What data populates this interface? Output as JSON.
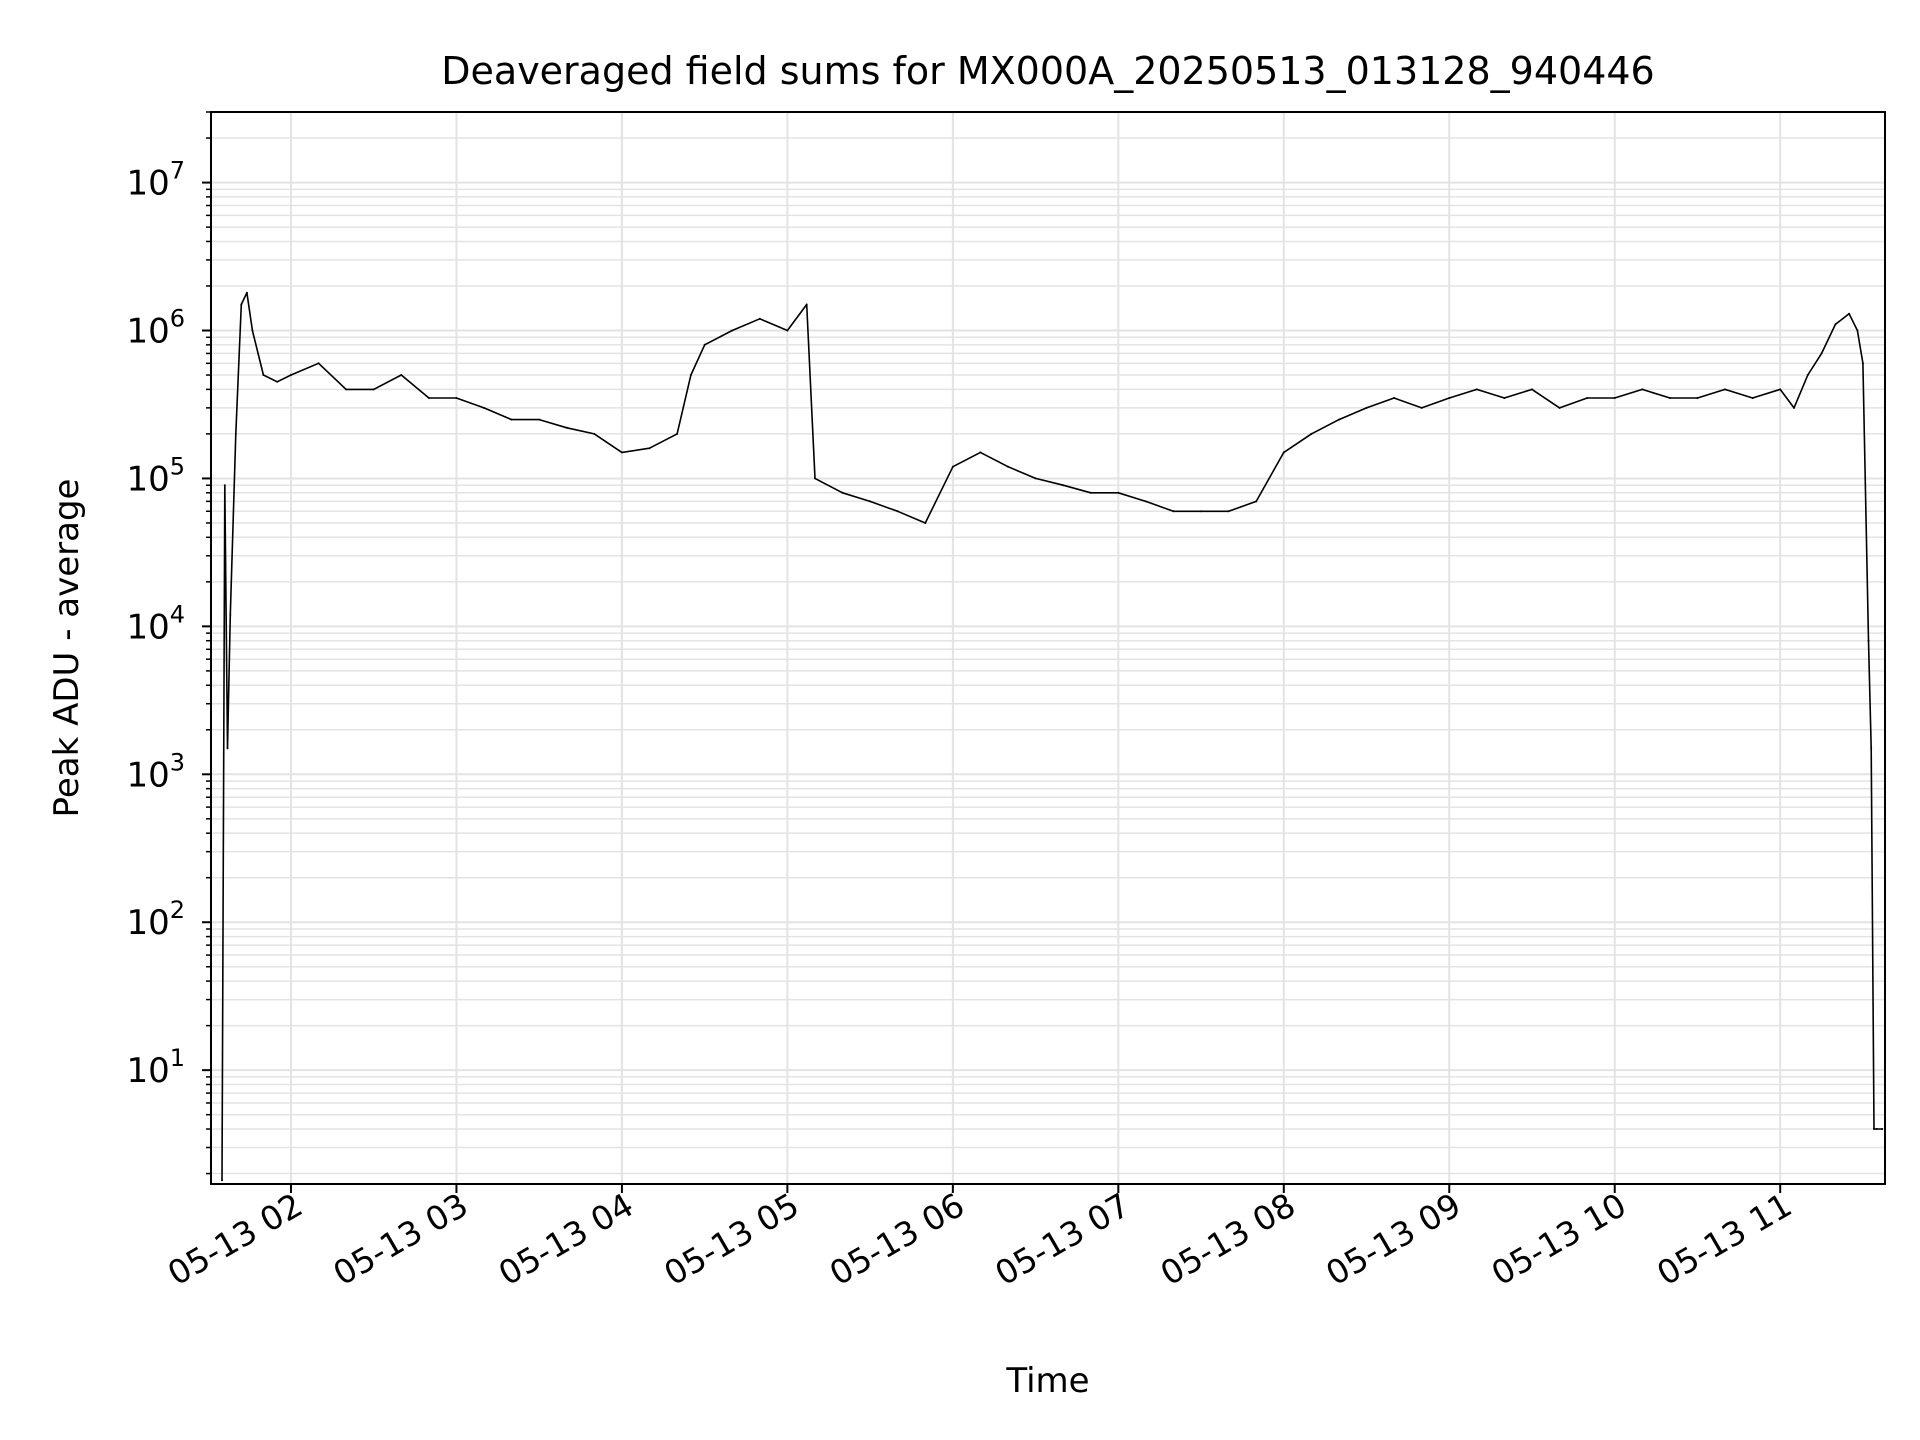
{
  "chart_data": {
    "type": "line",
    "title": "Deaveraged field sums for MX000A_20250513_013128_940446",
    "xlabel": "Time",
    "ylabel": "Peak ADU - average",
    "yscale": "log",
    "ylim": [
      1.7,
      30000000
    ],
    "xlim": [
      "2025-05-13 01:31:00",
      "2025-05-13 11:38:00"
    ],
    "x_ticks": [
      {
        "label": "05-13 02",
        "time": "2025-05-13 02:00"
      },
      {
        "label": "05-13 03",
        "time": "2025-05-13 03:00"
      },
      {
        "label": "05-13 04",
        "time": "2025-05-13 04:00"
      },
      {
        "label": "05-13 05",
        "time": "2025-05-13 05:00"
      },
      {
        "label": "05-13 06",
        "time": "2025-05-13 06:00"
      },
      {
        "label": "05-13 07",
        "time": "2025-05-13 07:00"
      },
      {
        "label": "05-13 08",
        "time": "2025-05-13 08:00"
      },
      {
        "label": "05-13 09",
        "time": "2025-05-13 09:00"
      },
      {
        "label": "05-13 10",
        "time": "2025-05-13 10:00"
      },
      {
        "label": "05-13 11",
        "time": "2025-05-13 11:00"
      }
    ],
    "y_ticks": [
      {
        "base": "10",
        "exp": "1",
        "value": 10
      },
      {
        "base": "10",
        "exp": "2",
        "value": 100
      },
      {
        "base": "10",
        "exp": "3",
        "value": 1000
      },
      {
        "base": "10",
        "exp": "4",
        "value": 10000
      },
      {
        "base": "10",
        "exp": "5",
        "value": 100000
      },
      {
        "base": "10",
        "exp": "6",
        "value": 1000000
      },
      {
        "base": "10",
        "exp": "7",
        "value": 10000000
      }
    ],
    "grid": true,
    "minor_grid": true,
    "line_color": "#000000",
    "grid_color": "#e3e3e3",
    "series": [
      {
        "x": [
          "2025-05-13 01:35",
          "2025-05-13 01:36",
          "2025-05-13 01:37",
          "2025-05-13 01:38",
          "2025-05-13 01:40",
          "2025-05-13 01:42",
          "2025-05-13 01:44",
          "2025-05-13 01:46",
          "2025-05-13 01:50",
          "2025-05-13 01:55",
          "2025-05-13 02:00",
          "2025-05-13 02:10",
          "2025-05-13 02:20",
          "2025-05-13 02:30",
          "2025-05-13 02:40",
          "2025-05-13 02:50",
          "2025-05-13 03:00",
          "2025-05-13 03:10",
          "2025-05-13 03:20",
          "2025-05-13 03:30",
          "2025-05-13 03:40",
          "2025-05-13 03:50",
          "2025-05-13 04:00",
          "2025-05-13 04:10",
          "2025-05-13 04:20",
          "2025-05-13 04:25",
          "2025-05-13 04:30",
          "2025-05-13 04:40",
          "2025-05-13 04:50",
          "2025-05-13 05:00",
          "2025-05-13 05:07",
          "2025-05-13 05:10",
          "2025-05-13 05:20",
          "2025-05-13 05:30",
          "2025-05-13 05:40",
          "2025-05-13 05:50",
          "2025-05-13 06:00",
          "2025-05-13 06:10",
          "2025-05-13 06:20",
          "2025-05-13 06:30",
          "2025-05-13 06:40",
          "2025-05-13 06:50",
          "2025-05-13 07:00",
          "2025-05-13 07:10",
          "2025-05-13 07:20",
          "2025-05-13 07:30",
          "2025-05-13 07:40",
          "2025-05-13 07:50",
          "2025-05-13 08:00",
          "2025-05-13 08:10",
          "2025-05-13 08:20",
          "2025-05-13 08:30",
          "2025-05-13 08:40",
          "2025-05-13 08:50",
          "2025-05-13 09:00",
          "2025-05-13 09:10",
          "2025-05-13 09:20",
          "2025-05-13 09:30",
          "2025-05-13 09:40",
          "2025-05-13 09:50",
          "2025-05-13 10:00",
          "2025-05-13 10:10",
          "2025-05-13 10:20",
          "2025-05-13 10:30",
          "2025-05-13 10:40",
          "2025-05-13 10:50",
          "2025-05-13 11:00",
          "2025-05-13 11:05",
          "2025-05-13 11:10",
          "2025-05-13 11:15",
          "2025-05-13 11:20",
          "2025-05-13 11:25",
          "2025-05-13 11:28",
          "2025-05-13 11:30",
          "2025-05-13 11:32",
          "2025-05-13 11:33",
          "2025-05-13 11:34",
          "2025-05-13 11:35",
          "2025-05-13 11:37"
        ],
        "y": [
          1.8,
          90000,
          1500,
          12000,
          200000,
          1500000,
          1800000,
          1000000,
          500000,
          450000,
          500000,
          600000,
          400000,
          400000,
          500000,
          350000,
          350000,
          300000,
          250000,
          250000,
          220000,
          200000,
          150000,
          160000,
          200000,
          500000,
          800000,
          1000000,
          1200000,
          1000000,
          1500000,
          100000,
          80000,
          70000,
          60000,
          50000,
          120000,
          150000,
          120000,
          100000,
          90000,
          80000,
          80000,
          70000,
          60000,
          60000,
          60000,
          70000,
          150000,
          200000,
          250000,
          300000,
          350000,
          300000,
          350000,
          400000,
          350000,
          400000,
          300000,
          350000,
          350000,
          400000,
          350000,
          350000,
          400000,
          350000,
          400000,
          300000,
          500000,
          700000,
          1100000,
          1300000,
          1000000,
          600000,
          8000,
          1500,
          4,
          4,
          4
        ]
      }
    ]
  }
}
